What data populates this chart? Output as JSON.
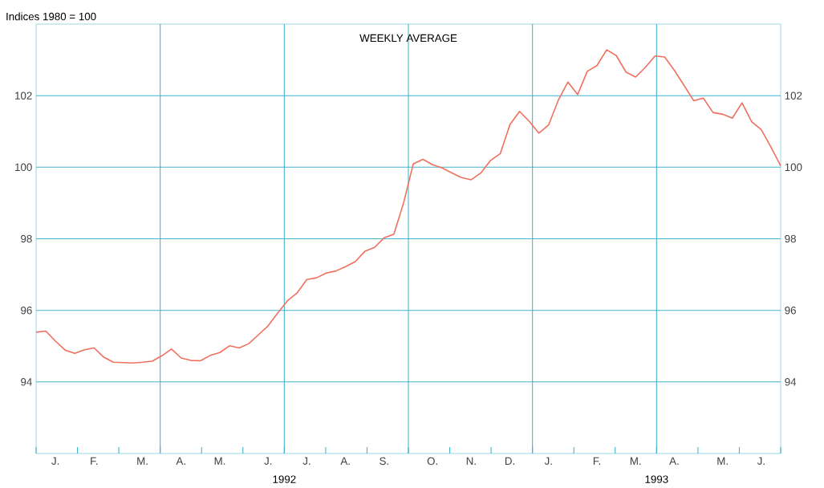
{
  "chart_data": {
    "type": "line",
    "title": "WEEKLY AVERAGE",
    "ylabel": "Indices 1980 = 100",
    "annotations": [
      "1992",
      "1993"
    ],
    "categories": [
      null,
      null,
      "J.",
      null,
      null,
      null,
      "F.",
      null,
      null,
      null,
      null,
      "M.",
      null,
      null,
      null,
      "A.",
      null,
      null,
      null,
      "M.",
      null,
      null,
      null,
      null,
      "J.",
      null,
      null,
      null,
      "J.",
      null,
      null,
      null,
      "A.",
      null,
      null,
      null,
      "S.",
      null,
      null,
      null,
      null,
      "O.",
      null,
      null,
      null,
      "N.",
      null,
      null,
      null,
      "D.",
      null,
      null,
      null,
      "J.",
      null,
      null,
      null,
      null,
      "F.",
      null,
      null,
      null,
      "M.",
      null,
      null,
      null,
      "A.",
      null,
      null,
      null,
      null,
      "M.",
      null,
      null,
      null,
      "J.",
      null,
      null
    ],
    "series": [
      {
        "color": "#f07060",
        "values": [
          95.39,
          95.42,
          95.14,
          94.89,
          94.8,
          94.9,
          94.95,
          94.69,
          94.55,
          94.54,
          94.53,
          94.55,
          94.58,
          94.73,
          94.92,
          94.67,
          94.6,
          94.59,
          94.74,
          94.82,
          95.01,
          94.95,
          95.07,
          95.32,
          95.57,
          95.93,
          96.27,
          96.49,
          96.86,
          96.91,
          97.04,
          97.1,
          97.22,
          97.36,
          97.65,
          97.76,
          98.03,
          98.13,
          99.0,
          100.09,
          100.22,
          100.07,
          99.98,
          99.84,
          99.71,
          99.65,
          99.84,
          100.19,
          100.38,
          101.19,
          101.56,
          101.28,
          100.95,
          101.18,
          101.87,
          102.38,
          102.03,
          102.68,
          102.84,
          103.28,
          103.12,
          102.66,
          102.52,
          102.79,
          103.11,
          103.08,
          102.71,
          102.29,
          101.86,
          101.93,
          101.53,
          101.48,
          101.37,
          101.8,
          101.27,
          101.05,
          100.56,
          100.04
        ]
      }
    ],
    "ylim": [
      92,
      104
    ],
    "yticks": [
      94,
      96,
      98,
      100,
      102
    ],
    "y2lim": [
      92,
      104
    ],
    "y2ticks": [
      94,
      96,
      98,
      100,
      102
    ],
    "grid": "y",
    "marker": "none",
    "line_style": "solid"
  }
}
